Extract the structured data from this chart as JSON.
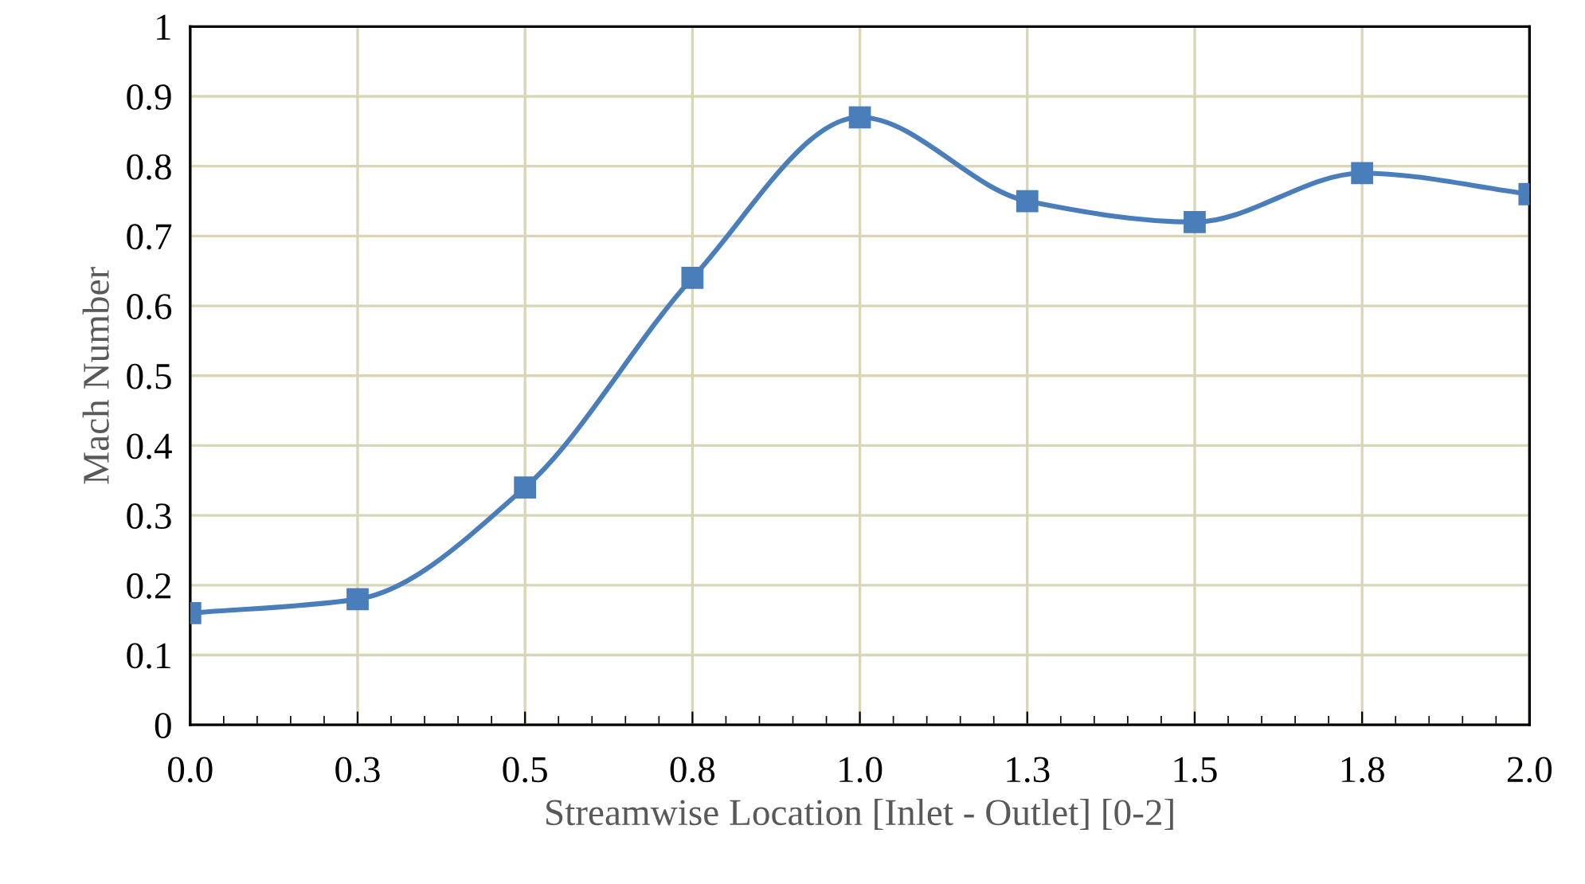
{
  "chart_data": {
    "type": "line",
    "xlabel": "Streamwise Location [Inlet - Outlet] [0-2]",
    "ylabel": "Mach Number",
    "x": [
      0,
      0.25,
      0.5,
      0.75,
      1.0,
      1.25,
      1.5,
      1.75,
      2.0
    ],
    "series": [
      {
        "color": "#4a7ebb",
        "values": [
          0.16,
          0.18,
          0.34,
          0.64,
          0.87,
          0.75,
          0.72,
          0.79,
          0.76
        ]
      }
    ],
    "xlim": [
      0,
      2
    ],
    "xticks": [
      {
        "value": 0,
        "label": "0.0"
      },
      {
        "value": 0.25,
        "label": "0.3"
      },
      {
        "value": 0.5,
        "label": "0.5"
      },
      {
        "value": 0.75,
        "label": "0.8"
      },
      {
        "value": 1.0,
        "label": "1.0"
      },
      {
        "value": 1.25,
        "label": "1.3"
      },
      {
        "value": 1.5,
        "label": "1.5"
      },
      {
        "value": 1.75,
        "label": "1.8"
      },
      {
        "value": 2.0,
        "label": "2.0"
      }
    ],
    "ylim": [
      0,
      1
    ],
    "yticks": [
      0,
      0.1,
      0.2,
      0.3,
      0.4,
      0.5,
      0.6,
      0.7,
      0.8,
      0.9,
      1
    ],
    "grid": true,
    "marker": "square",
    "line_style": "solid"
  }
}
